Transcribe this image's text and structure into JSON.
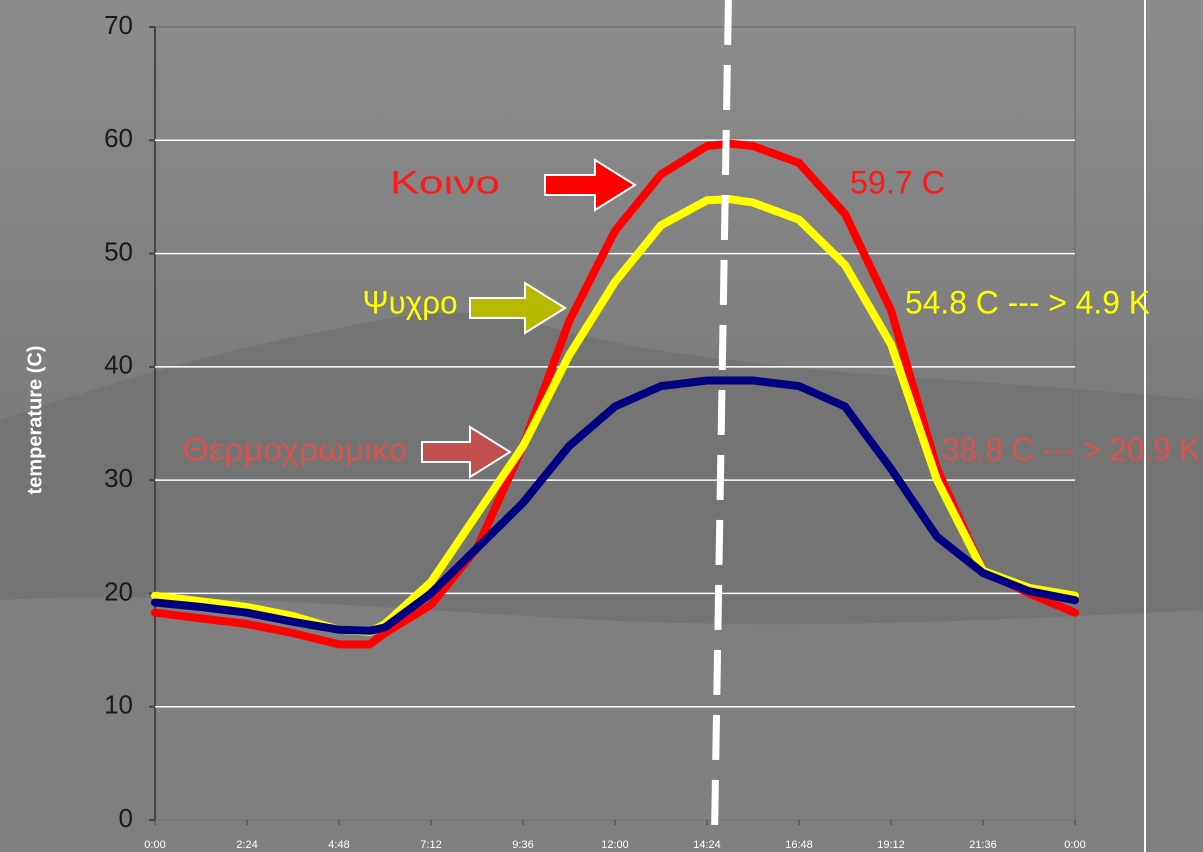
{
  "chart_data": {
    "type": "line",
    "y_label": "temperature (C)",
    "x": [
      0,
      1.2,
      2.4,
      3.6,
      4.8,
      5.6,
      6,
      7.2,
      8.4,
      9.6,
      10.8,
      12,
      13.2,
      14.4,
      15,
      15.6,
      16.8,
      18,
      19.2,
      20.4,
      21.6,
      22.8,
      24
    ],
    "xlim": [
      0,
      24
    ],
    "xticks": [
      {
        "value": 0,
        "label": "0:00"
      },
      {
        "value": 2.4,
        "label": "2:24"
      },
      {
        "value": 4.8,
        "label": "4:48"
      },
      {
        "value": 7.2,
        "label": "7:12"
      },
      {
        "value": 9.6,
        "label": "9:36"
      },
      {
        "value": 12,
        "label": "12:00"
      },
      {
        "value": 14.4,
        "label": "14:24"
      },
      {
        "value": 16.8,
        "label": "16:48"
      },
      {
        "value": 19.2,
        "label": "19:12"
      },
      {
        "value": 21.6,
        "label": "21:36"
      },
      {
        "value": 24,
        "label": "0:00"
      }
    ],
    "ylim": [
      0,
      70
    ],
    "yticks": [
      0,
      10,
      20,
      30,
      40,
      50,
      60,
      70
    ],
    "grid": true,
    "marker_x": 14.75,
    "series": [
      {
        "name": "Κοινο",
        "color": "#ff0000",
        "label_color": "#ff1a1a",
        "values": [
          18.3,
          17.8,
          17.3,
          16.5,
          15.5,
          15.5,
          16.5,
          19,
          24,
          33,
          44,
          52,
          57,
          59.5,
          59.7,
          59.5,
          58,
          53.5,
          45,
          31,
          22,
          20,
          18.3
        ]
      },
      {
        "name": "Ψυχρο",
        "color": "#ffff00",
        "label_color": "#ffff00",
        "values": [
          19.8,
          19.3,
          18.8,
          18,
          16.8,
          16.6,
          17.3,
          21,
          27,
          33,
          41,
          47.5,
          52.5,
          54.7,
          54.8,
          54.5,
          53,
          49,
          42,
          30,
          22,
          20.5,
          19.8
        ]
      },
      {
        "name": "Θερμοχρωμικο",
        "color": "#000080",
        "label_color": "#d9534f",
        "values": [
          19.2,
          18.8,
          18.3,
          17.5,
          16.8,
          16.7,
          17,
          20,
          24,
          28,
          33,
          36.5,
          38.3,
          38.8,
          38.8,
          38.8,
          38.3,
          36.5,
          31,
          25,
          21.8,
          20.2,
          19.4
        ]
      }
    ],
    "annotations": [
      {
        "text": "59.7 C",
        "color": "#ff1a1a"
      },
      {
        "text": "54.8 C --- > 4.9 K",
        "color": "#ffff00"
      },
      {
        "text": "38.8 C --- > 20.9 K",
        "color": "#d9534f"
      }
    ]
  }
}
